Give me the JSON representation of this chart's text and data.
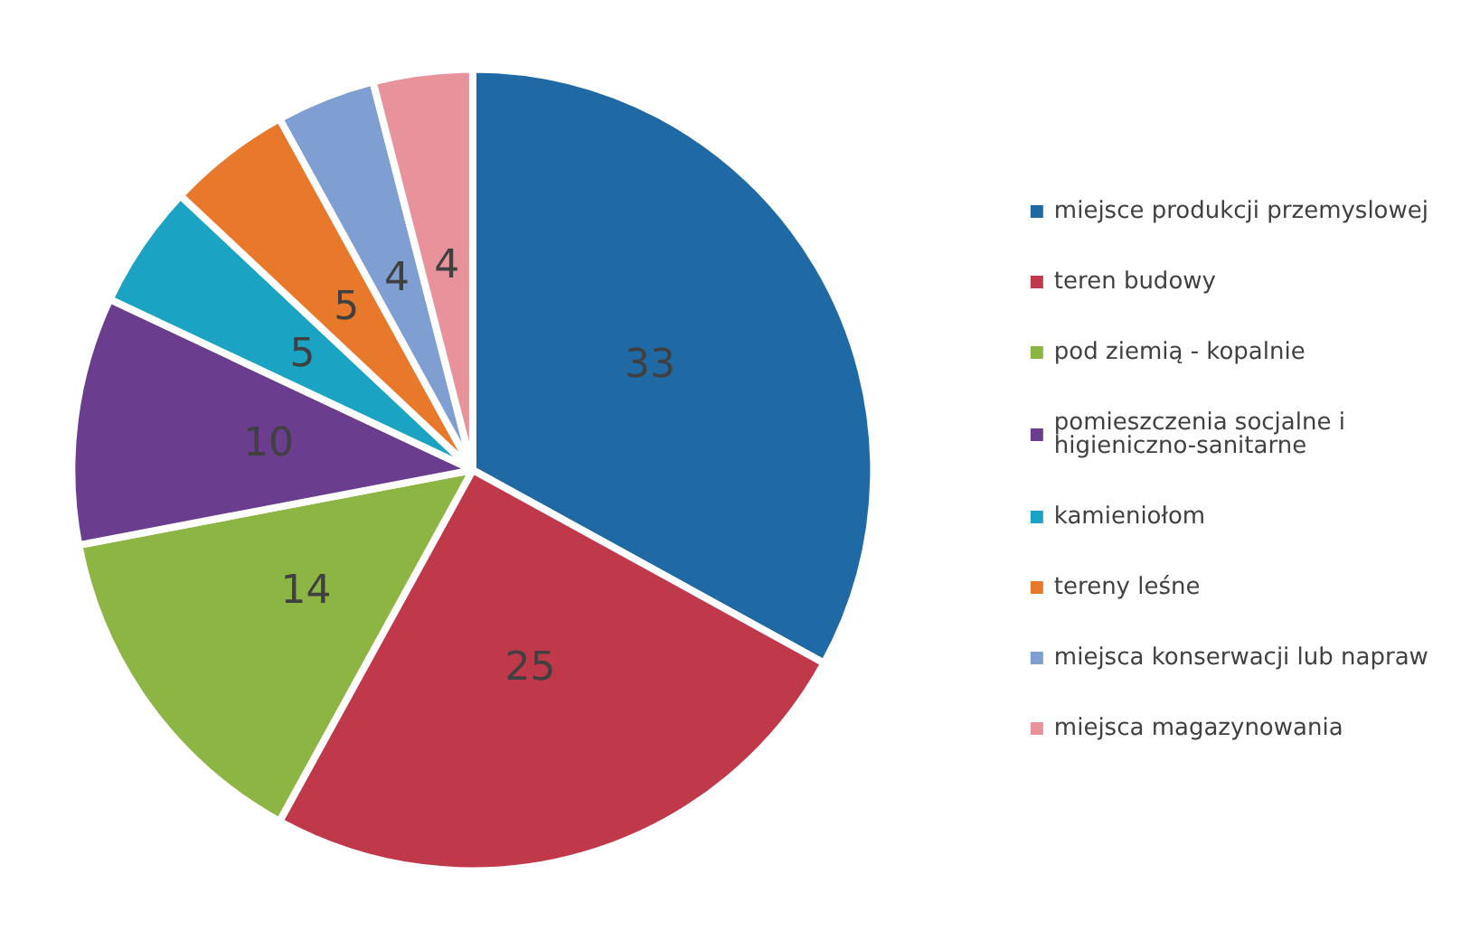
{
  "chart_data": {
    "type": "pie",
    "categories": [
      "miejsce produkcji przemyslowej",
      "teren budowy",
      "pod ziemią - kopalnie",
      "pomieszczenia socjalne i higieniczno-sanitarne",
      "kamieniołom",
      "tereny leśne",
      "miejsca konserwacji lub napraw",
      "miejsca magazynowania"
    ],
    "values": [
      33,
      25,
      14,
      10,
      5,
      5,
      4,
      4
    ],
    "colors": [
      "#1f6aa5",
      "#c0394b",
      "#8db543",
      "#6a3d8f",
      "#1aa3c2",
      "#e8782a",
      "#7f9fd3",
      "#e8939b"
    ],
    "data_labels": true,
    "legend": "right"
  }
}
